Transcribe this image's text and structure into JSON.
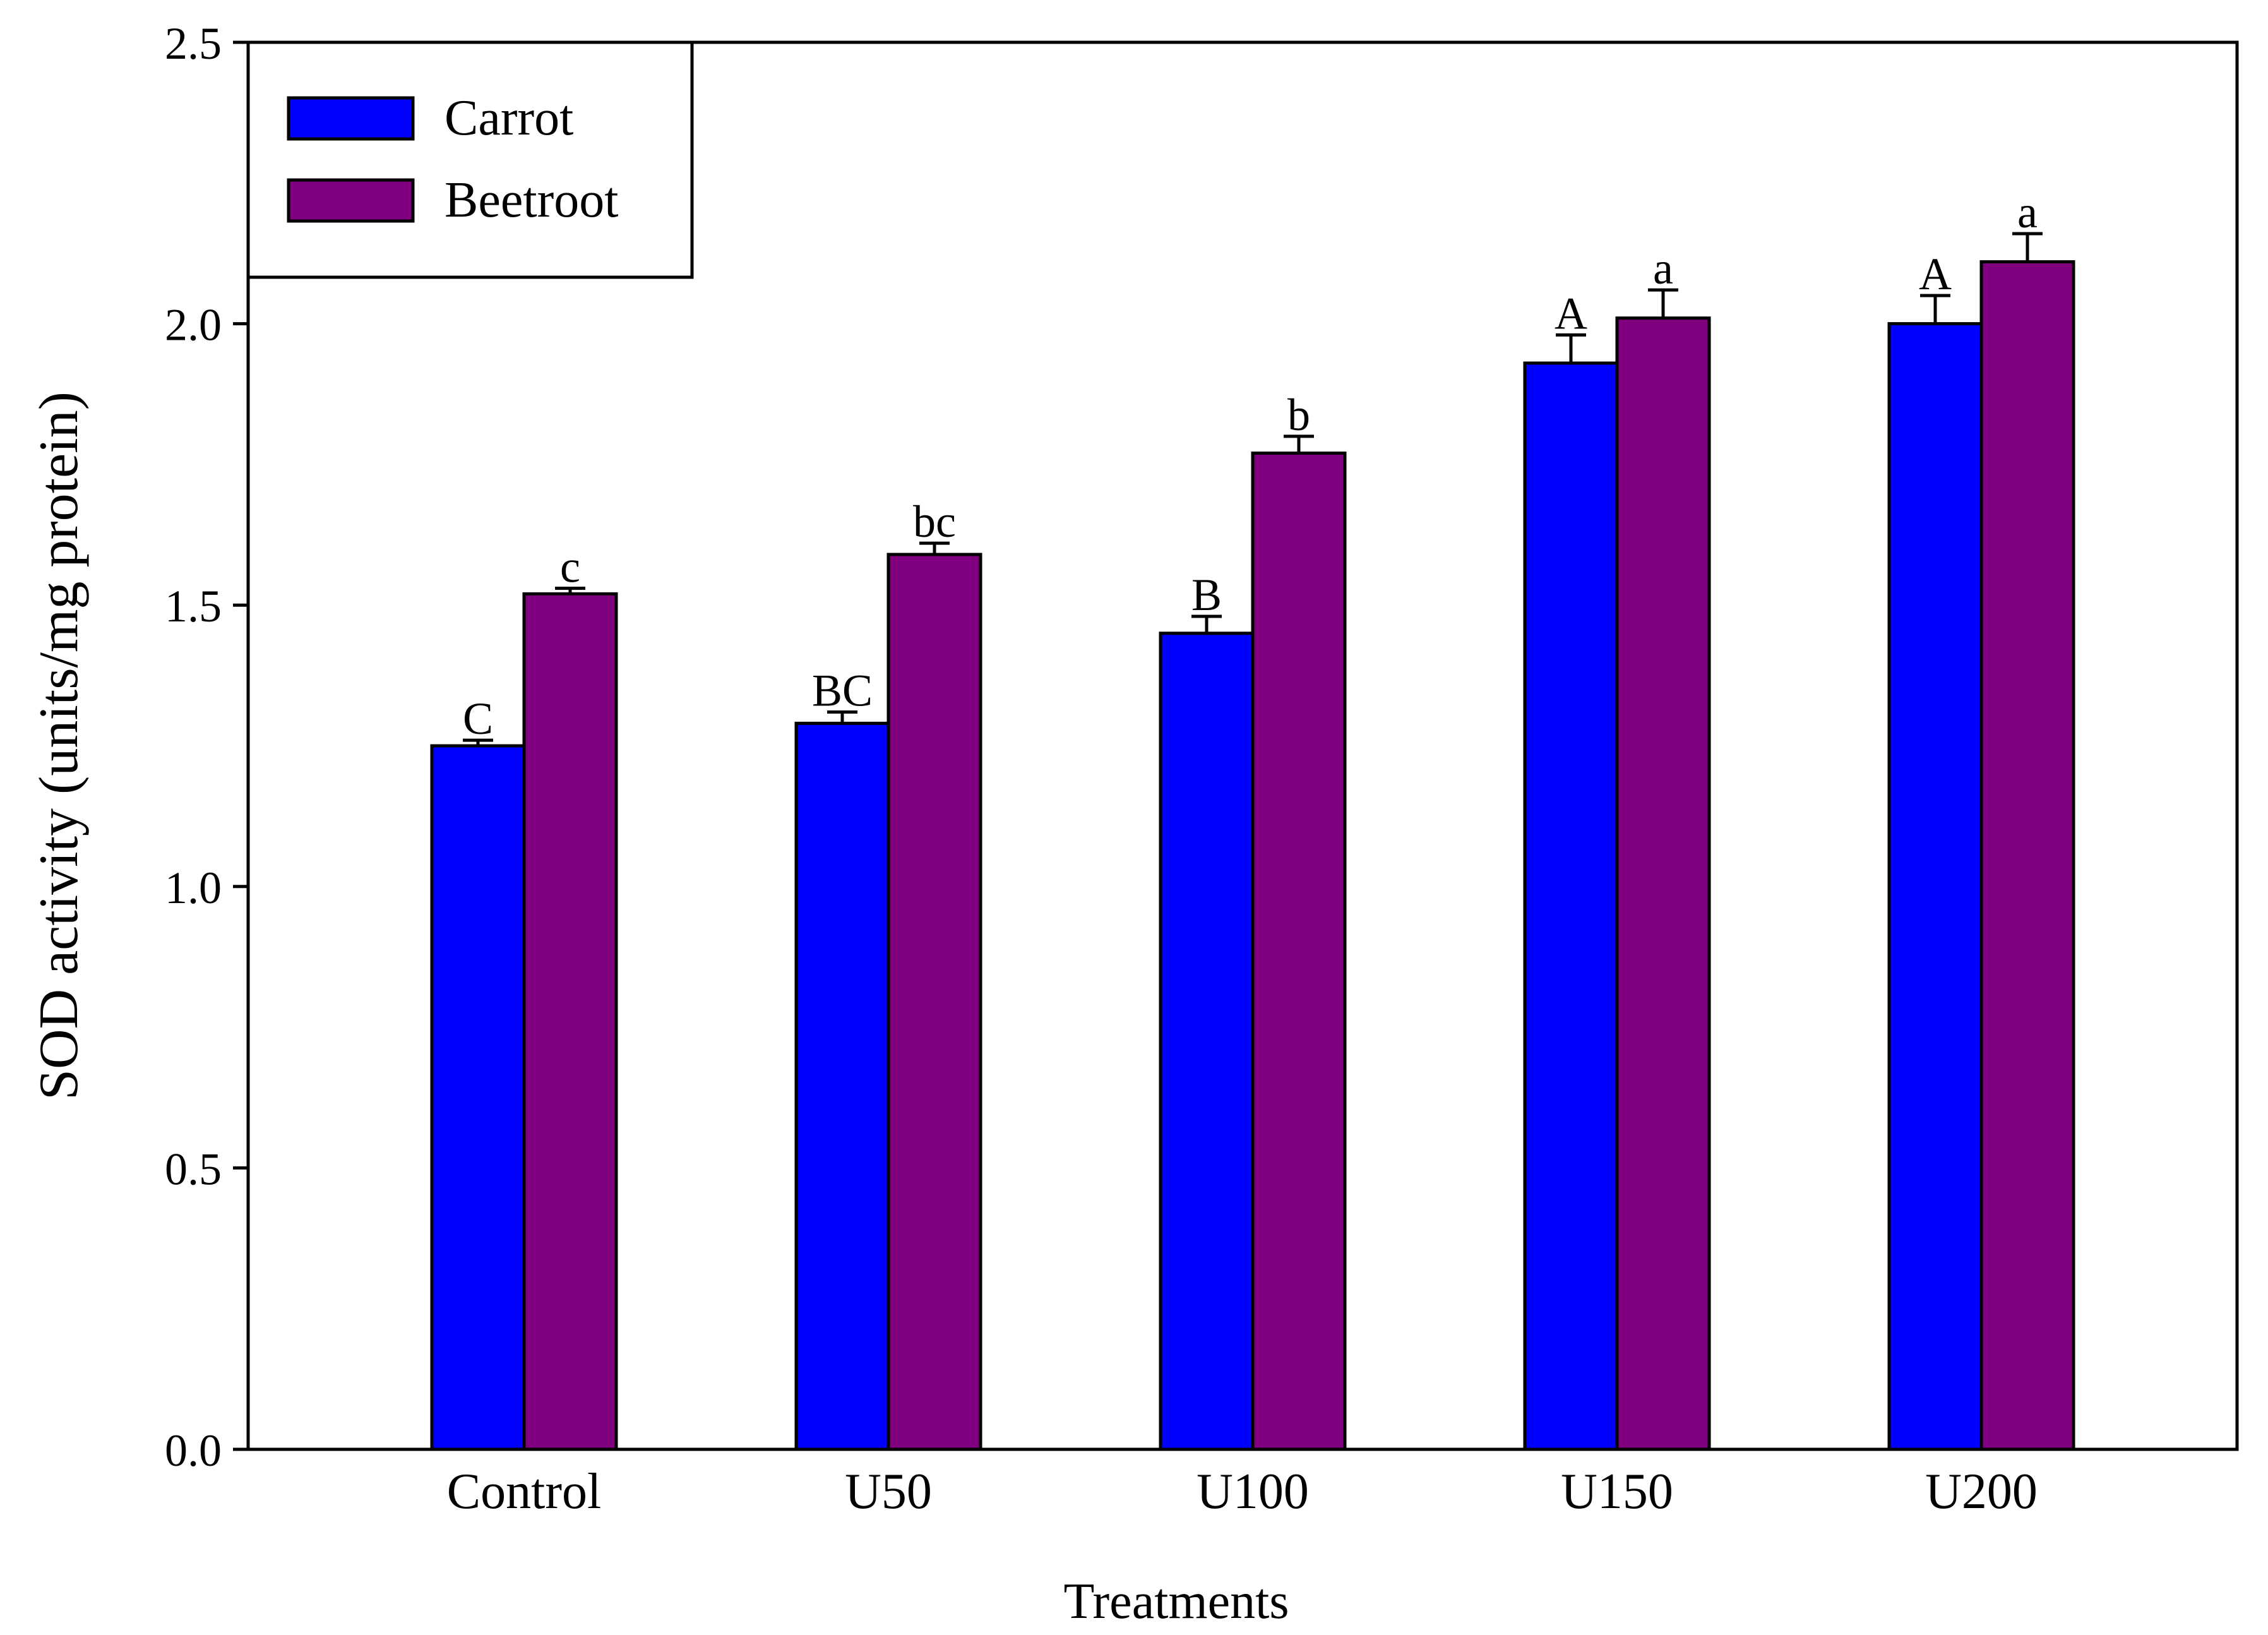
{
  "chart_data": {
    "type": "bar",
    "title": "",
    "xlabel": "Treatments",
    "ylabel": "SOD activity (units/mg protein)",
    "categories": [
      "Control",
      "U50",
      "U100",
      "U150",
      "U200"
    ],
    "ylim": [
      0,
      2.5
    ],
    "yticks": [
      "0.0",
      "0.5",
      "1.0",
      "1.5",
      "2.0",
      "2.5"
    ],
    "grid": false,
    "legend_position": "top-left",
    "series": [
      {
        "name": "Carrot",
        "color": "#0000ff",
        "values": [
          1.25,
          1.29,
          1.45,
          1.93,
          2.0
        ],
        "errors": [
          0.01,
          0.02,
          0.03,
          0.05,
          0.05
        ],
        "letters": [
          "C",
          "BC",
          "B",
          "A",
          "A"
        ]
      },
      {
        "name": "Beetroot",
        "color": "#800080",
        "values": [
          1.52,
          1.59,
          1.77,
          2.01,
          2.11
        ],
        "errors": [
          0.01,
          0.02,
          0.03,
          0.05,
          0.05
        ],
        "letters": [
          "c",
          "bc",
          "b",
          "a",
          "a"
        ]
      }
    ]
  }
}
